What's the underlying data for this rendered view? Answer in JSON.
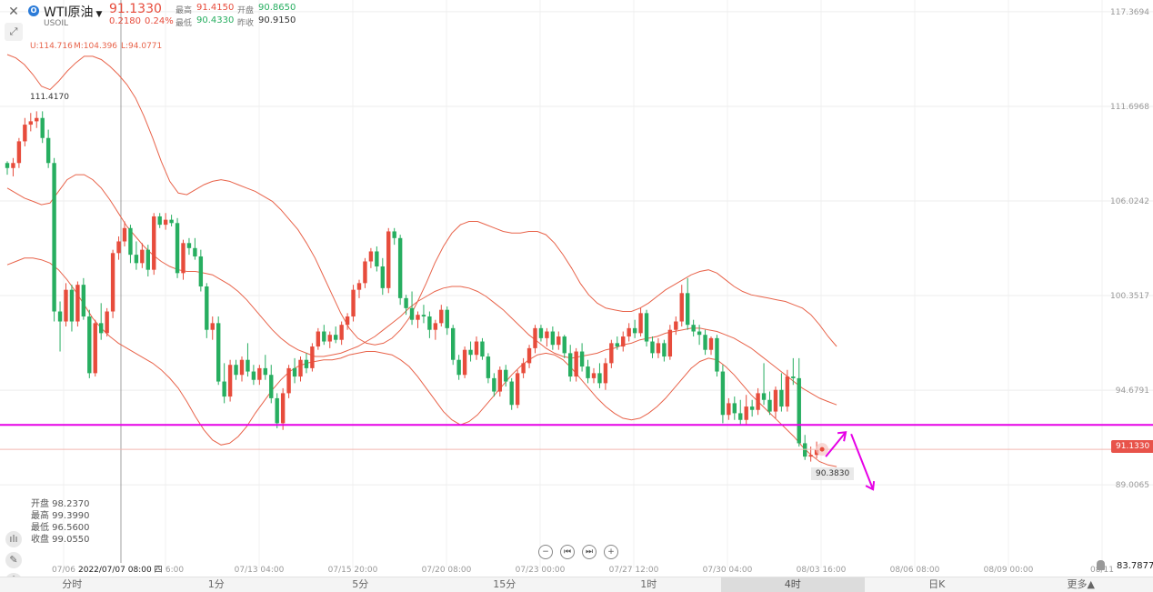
{
  "header": {
    "title": "WTI原油",
    "symbol": "USOIL",
    "price": "91.1330",
    "change": "0.2180",
    "change_pct": "0.24%",
    "high_label": "最高",
    "high": "91.4150",
    "open_label": "开盘",
    "open": "90.8650",
    "low_label": "最低",
    "low": "90.4330",
    "prev_label": "昨收",
    "prev": "90.9150"
  },
  "indicator": {
    "u": "U:114.716",
    "m": "M:104.396",
    "l": "L:94.0771"
  },
  "ohlc_box": {
    "open": "开盘 98.2370",
    "high": "最高 99.3990",
    "low": "最低 96.5600",
    "close": "收盘 99.0550"
  },
  "crosshair": {
    "date_label": "2022/07/07 08:00 四"
  },
  "labels": {
    "high_marker": "111.4170",
    "low_marker": "90.3830",
    "current_price": "91.1330",
    "bottom_right_value": "83.7877",
    "overlap_label": "08/03 16:00"
  },
  "timeframes": [
    {
      "label": "分时",
      "active": false
    },
    {
      "label": "1分",
      "active": false
    },
    {
      "label": "5分",
      "active": false
    },
    {
      "label": "15分",
      "active": false
    },
    {
      "label": "1时",
      "active": false
    },
    {
      "label": "4时",
      "active": true
    },
    {
      "label": "日K",
      "active": false
    },
    {
      "label": "更多▲",
      "active": false
    }
  ],
  "colors": {
    "up": "#e74c3c",
    "down": "#27ae60",
    "band": "#e8634a",
    "hline": "#e600e6",
    "arrow": "#e600e6"
  },
  "chart_data": {
    "type": "candlestick",
    "y_ticks": [
      "117.3694",
      "111.6968",
      "106.0242",
      "100.3517",
      "94.6791",
      "89.0065"
    ],
    "x_ticks": [
      "07/06",
      "13 16:00",
      "07/13 04:00",
      "07/15 20:00",
      "07/20 08:00",
      "07/23 00:00",
      "07/27 12:00",
      "07/30 04:00",
      "08/03 16:00",
      "08/06 08:00",
      "08/09 00:00",
      "08/11"
    ],
    "ylim": [
      84.0,
      117.8
    ],
    "horizontal_line": 92.6,
    "current_price": 91.133,
    "candles": [
      [
        108.3,
        108.4,
        107.6,
        108.0
      ],
      [
        108.0,
        108.6,
        107.5,
        108.3
      ],
      [
        108.3,
        109.8,
        108.0,
        109.6
      ],
      [
        109.6,
        111.0,
        109.3,
        110.6
      ],
      [
        110.6,
        111.3,
        110.2,
        110.8
      ],
      [
        110.8,
        111.4,
        110.4,
        111.0
      ],
      [
        111.0,
        111.4,
        109.5,
        109.8
      ],
      [
        109.8,
        110.3,
        108.0,
        108.3
      ],
      [
        108.3,
        108.6,
        98.8,
        99.4
      ],
      [
        99.4,
        100.0,
        97.0,
        98.8
      ],
      [
        98.8,
        101.1,
        98.5,
        100.7
      ],
      [
        100.7,
        101.0,
        98.2,
        98.8
      ],
      [
        98.8,
        101.2,
        98.5,
        101.0
      ],
      [
        101.0,
        101.4,
        98.9,
        99.1
      ],
      [
        99.1,
        99.5,
        95.4,
        95.7
      ],
      [
        95.7,
        98.9,
        95.5,
        98.7
      ],
      [
        98.7,
        99.9,
        97.7,
        98.1
      ],
      [
        98.1,
        99.6,
        97.9,
        99.4
      ],
      [
        99.4,
        103.1,
        99.0,
        102.9
      ],
      [
        102.9,
        103.9,
        102.5,
        103.6
      ],
      [
        103.6,
        104.8,
        103.3,
        104.4
      ],
      [
        104.4,
        104.6,
        102.3,
        102.8
      ],
      [
        102.8,
        103.6,
        101.9,
        102.3
      ],
      [
        102.3,
        103.5,
        102.0,
        103.1
      ],
      [
        103.1,
        103.4,
        101.5,
        101.9
      ],
      [
        101.9,
        105.3,
        101.6,
        105.1
      ],
      [
        105.1,
        105.3,
        104.4,
        104.6
      ],
      [
        104.6,
        105.3,
        104.3,
        104.9
      ],
      [
        104.9,
        105.2,
        104.5,
        104.7
      ],
      [
        104.7,
        105.0,
        101.4,
        101.7
      ],
      [
        101.7,
        103.7,
        101.3,
        103.5
      ],
      [
        103.5,
        103.8,
        102.8,
        103.2
      ],
      [
        103.2,
        103.8,
        102.5,
        102.7
      ],
      [
        102.7,
        103.1,
        100.6,
        100.9
      ],
      [
        100.9,
        101.1,
        97.8,
        98.3
      ],
      [
        98.3,
        99.1,
        97.7,
        98.7
      ],
      [
        98.7,
        99.1,
        95.0,
        95.2
      ],
      [
        95.2,
        96.3,
        93.9,
        94.3
      ],
      [
        94.3,
        96.5,
        94.0,
        96.2
      ],
      [
        96.2,
        96.5,
        95.3,
        95.6
      ],
      [
        95.6,
        96.7,
        95.2,
        96.5
      ],
      [
        96.5,
        97.5,
        95.5,
        95.8
      ],
      [
        95.8,
        96.2,
        95.0,
        95.3
      ],
      [
        95.3,
        96.2,
        95.0,
        96.0
      ],
      [
        96.0,
        96.8,
        95.3,
        95.6
      ],
      [
        95.6,
        96.2,
        93.9,
        94.2
      ],
      [
        94.2,
        94.5,
        92.4,
        92.7
      ],
      [
        92.7,
        94.8,
        92.3,
        94.5
      ],
      [
        94.5,
        96.2,
        94.2,
        96.0
      ],
      [
        96.0,
        96.6,
        95.1,
        95.5
      ],
      [
        95.5,
        96.7,
        95.2,
        96.5
      ],
      [
        96.5,
        96.9,
        95.7,
        96.0
      ],
      [
        96.0,
        97.5,
        95.8,
        97.3
      ],
      [
        97.3,
        98.4,
        97.1,
        98.2
      ],
      [
        98.2,
        98.6,
        97.4,
        97.6
      ],
      [
        97.6,
        98.2,
        97.2,
        98.0
      ],
      [
        98.0,
        98.5,
        97.5,
        97.7
      ],
      [
        97.7,
        98.8,
        97.4,
        98.6
      ],
      [
        98.6,
        99.3,
        98.3,
        99.1
      ],
      [
        99.1,
        101.0,
        98.8,
        100.7
      ],
      [
        100.7,
        101.3,
        100.2,
        101.1
      ],
      [
        101.1,
        102.6,
        100.8,
        102.4
      ],
      [
        102.4,
        103.2,
        102.0,
        103.0
      ],
      [
        103.0,
        103.3,
        101.8,
        102.1
      ],
      [
        102.1,
        102.6,
        100.4,
        100.8
      ],
      [
        100.8,
        104.4,
        100.5,
        104.2
      ],
      [
        104.2,
        104.4,
        103.4,
        103.8
      ],
      [
        103.8,
        104.0,
        99.8,
        100.2
      ],
      [
        100.2,
        100.4,
        99.2,
        99.6
      ],
      [
        99.6,
        100.6,
        98.6,
        98.9
      ],
      [
        98.9,
        99.4,
        98.4,
        99.2
      ],
      [
        99.2,
        99.8,
        98.7,
        99.1
      ],
      [
        99.1,
        99.4,
        97.8,
        98.3
      ],
      [
        98.3,
        98.9,
        97.7,
        98.7
      ],
      [
        98.7,
        99.8,
        98.5,
        99.5
      ],
      [
        99.5,
        99.7,
        98.0,
        98.4
      ],
      [
        98.4,
        98.6,
        96.2,
        96.5
      ],
      [
        96.5,
        96.8,
        95.3,
        95.6
      ],
      [
        95.6,
        97.3,
        95.4,
        97.1
      ],
      [
        97.1,
        97.6,
        96.4,
        96.8
      ],
      [
        96.8,
        97.9,
        96.5,
        97.6
      ],
      [
        97.6,
        97.8,
        96.5,
        96.7
      ],
      [
        96.7,
        96.9,
        95.1,
        95.4
      ],
      [
        95.4,
        95.7,
        94.3,
        94.6
      ],
      [
        94.6,
        96.1,
        94.3,
        95.9
      ],
      [
        95.9,
        96.2,
        94.9,
        95.2
      ],
      [
        95.2,
        95.4,
        93.5,
        93.8
      ],
      [
        93.8,
        95.9,
        93.6,
        95.7
      ],
      [
        95.7,
        96.6,
        95.4,
        96.3
      ],
      [
        96.3,
        97.4,
        96.0,
        97.2
      ],
      [
        97.2,
        98.6,
        96.9,
        98.4
      ],
      [
        98.4,
        98.6,
        97.6,
        97.8
      ],
      [
        97.8,
        98.4,
        97.3,
        98.2
      ],
      [
        98.2,
        98.5,
        97.1,
        97.4
      ],
      [
        97.4,
        98.2,
        97.1,
        97.9
      ],
      [
        97.9,
        98.0,
        96.6,
        96.9
      ],
      [
        96.9,
        97.4,
        95.2,
        95.5
      ],
      [
        95.5,
        97.2,
        95.2,
        97.0
      ],
      [
        97.0,
        97.5,
        95.8,
        96.1
      ],
      [
        96.1,
        96.5,
        95.1,
        95.4
      ],
      [
        95.4,
        96.0,
        95.1,
        95.7
      ],
      [
        95.7,
        96.3,
        94.8,
        95.1
      ],
      [
        95.1,
        96.6,
        94.7,
        96.3
      ],
      [
        96.3,
        97.7,
        96.0,
        97.5
      ],
      [
        97.5,
        97.9,
        97.1,
        97.3
      ],
      [
        97.3,
        98.2,
        97.0,
        97.9
      ],
      [
        97.9,
        98.7,
        97.6,
        98.4
      ],
      [
        98.4,
        98.9,
        97.8,
        98.1
      ],
      [
        98.1,
        99.6,
        97.9,
        99.3
      ],
      [
        99.3,
        99.5,
        97.3,
        97.6
      ],
      [
        97.6,
        97.9,
        96.6,
        96.9
      ],
      [
        96.9,
        97.8,
        96.6,
        97.5
      ],
      [
        97.5,
        97.7,
        96.4,
        96.7
      ],
      [
        96.7,
        98.6,
        96.5,
        98.3
      ],
      [
        98.3,
        99.1,
        98.0,
        98.8
      ],
      [
        98.8,
        101.0,
        98.5,
        100.5
      ],
      [
        100.5,
        101.4,
        98.3,
        98.6
      ],
      [
        98.6,
        98.9,
        97.9,
        98.2
      ],
      [
        98.2,
        98.6,
        97.4,
        98.0
      ],
      [
        98.0,
        98.3,
        96.8,
        97.1
      ],
      [
        97.1,
        97.9,
        96.8,
        97.8
      ],
      [
        97.8,
        98.0,
        95.5,
        95.8
      ],
      [
        95.8,
        96.2,
        92.7,
        93.2
      ],
      [
        93.2,
        94.2,
        92.9,
        93.9
      ],
      [
        93.9,
        94.3,
        92.9,
        93.3
      ],
      [
        93.3,
        94.1,
        92.6,
        92.9
      ],
      [
        92.9,
        94.4,
        92.6,
        93.7
      ],
      [
        93.7,
        94.1,
        93.1,
        93.5
      ],
      [
        93.5,
        94.8,
        93.2,
        94.5
      ],
      [
        94.5,
        96.3,
        93.8,
        94.1
      ],
      [
        94.1,
        94.6,
        93.2,
        93.4
      ],
      [
        93.4,
        94.9,
        93.0,
        94.7
      ],
      [
        94.7,
        95.7,
        93.4,
        93.7
      ],
      [
        93.7,
        95.9,
        93.4,
        95.5
      ],
      [
        95.5,
        96.6,
        95.0,
        95.4
      ],
      [
        95.4,
        96.6,
        91.3,
        91.5
      ],
      [
        91.5,
        92.0,
        90.5,
        90.7
      ],
      [
        90.7,
        91.3,
        90.4,
        90.8
      ],
      [
        90.8,
        91.6,
        90.6,
        91.1
      ]
    ],
    "bands": {
      "upper": [
        114.8,
        114.6,
        114.2,
        113.6,
        112.9,
        112.7,
        113.2,
        113.8,
        114.3,
        114.7,
        114.7,
        114.5,
        114.1,
        113.6,
        113.0,
        112.2,
        111.1,
        109.8,
        108.4,
        107.2,
        106.5,
        106.4,
        106.7,
        107.0,
        107.2,
        107.3,
        107.2,
        107.0,
        106.8,
        106.6,
        106.3,
        106.0,
        105.5,
        104.9,
        104.3,
        103.5,
        102.6,
        101.5,
        100.4,
        99.3,
        98.4,
        97.8,
        97.5,
        97.4,
        97.5,
        97.8,
        98.3,
        99.0,
        100.0,
        101.1,
        102.3,
        103.3,
        104.1,
        104.6,
        104.8,
        104.8,
        104.6,
        104.4,
        104.2,
        104.1,
        104.1,
        104.2,
        104.2,
        104.0,
        103.5,
        102.8,
        102.0,
        101.1,
        100.4,
        99.9,
        99.6,
        99.5,
        99.4,
        99.4,
        99.6,
        99.9,
        100.3,
        100.7,
        101.0,
        101.3,
        101.6,
        101.8,
        101.9,
        101.7,
        101.3,
        100.9,
        100.6,
        100.4,
        100.3,
        100.2,
        100.1,
        100.0,
        99.8,
        99.6,
        99.2,
        98.6,
        97.9,
        97.3
      ],
      "middle": [
        106.8,
        106.5,
        106.2,
        106.0,
        105.8,
        105.9,
        106.6,
        107.3,
        107.6,
        107.6,
        107.3,
        106.8,
        106.1,
        105.3,
        104.5,
        103.9,
        103.3,
        102.8,
        102.4,
        102.1,
        101.9,
        101.8,
        101.8,
        101.7,
        101.6,
        101.3,
        101.0,
        100.6,
        100.1,
        99.5,
        98.9,
        98.3,
        97.8,
        97.4,
        97.1,
        96.9,
        96.7,
        96.7,
        96.8,
        96.9,
        97.1,
        97.3,
        97.6,
        97.9,
        98.3,
        98.7,
        99.1,
        99.6,
        100.0,
        100.3,
        100.6,
        100.8,
        100.9,
        100.9,
        100.8,
        100.6,
        100.3,
        99.9,
        99.5,
        99.0,
        98.5,
        98.0,
        97.6,
        97.2,
        96.9,
        96.7,
        96.6,
        96.7,
        96.8,
        96.9,
        97.1,
        97.2,
        97.4,
        97.5,
        97.7,
        97.8,
        97.9,
        98.1,
        98.2,
        98.3,
        98.4,
        98.4,
        98.3,
        98.2,
        98.0,
        97.8,
        97.5,
        97.2,
        96.8,
        96.4,
        96.0,
        95.6,
        95.2,
        94.8,
        94.5,
        94.2,
        94.0,
        93.8
      ],
      "lower": [
        102.2,
        102.4,
        102.6,
        102.6,
        102.5,
        102.3,
        101.9,
        101.3,
        100.6,
        99.8,
        99.0,
        98.4,
        97.9,
        97.5,
        97.2,
        96.9,
        96.6,
        96.3,
        95.9,
        95.4,
        94.8,
        94.0,
        93.1,
        92.3,
        91.7,
        91.4,
        91.5,
        91.9,
        92.5,
        93.3,
        94.0,
        94.7,
        95.3,
        95.8,
        96.1,
        96.3,
        96.4,
        96.5,
        96.5,
        96.6,
        96.8,
        96.9,
        97.0,
        97.0,
        96.9,
        96.8,
        96.5,
        96.1,
        95.5,
        94.8,
        94.1,
        93.4,
        92.9,
        92.6,
        92.8,
        93.2,
        93.8,
        94.4,
        95.0,
        95.6,
        96.1,
        96.5,
        96.8,
        96.9,
        96.8,
        96.5,
        96.0,
        95.4,
        94.8,
        94.2,
        93.7,
        93.3,
        93.0,
        92.9,
        93.0,
        93.3,
        93.7,
        94.2,
        94.8,
        95.4,
        96.0,
        96.4,
        96.6,
        96.5,
        96.1,
        95.6,
        95.0,
        94.4,
        93.9,
        93.4,
        92.9,
        92.4,
        91.9,
        91.3,
        90.8,
        90.4,
        90.2,
        90.1
      ]
    }
  }
}
